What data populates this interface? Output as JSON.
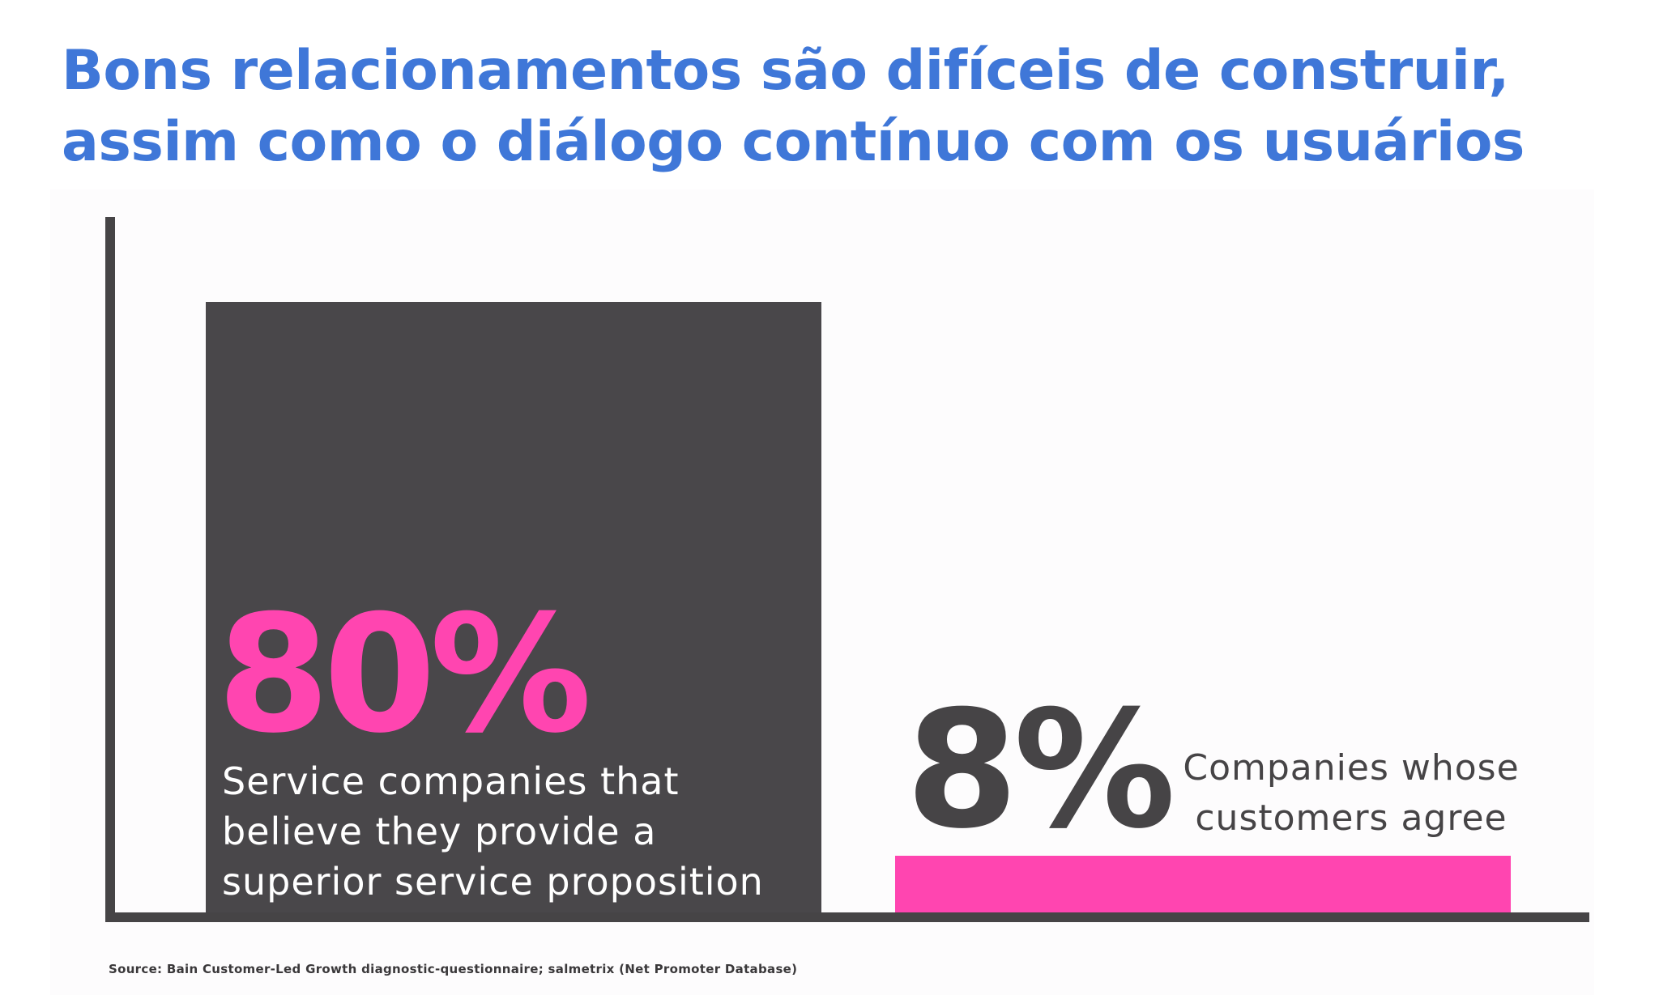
{
  "headline": {
    "line1": "Bons relacionamentos são difíceis de construir,",
    "line2": "assim como o diálogo contínuo com os usuários"
  },
  "colors": {
    "headline": "#3f77d8",
    "accent_pink": "#ff45b0",
    "bar_dark": "#49474a",
    "axis": "#464446"
  },
  "chart_data": {
    "type": "bar",
    "title": "",
    "xlabel": "",
    "ylabel": "",
    "ylim": [
      0,
      100
    ],
    "grid": false,
    "categories": [
      "Service companies that believe they provide a superior service proposition",
      "Companies whose customers agree"
    ],
    "values": [
      80,
      8
    ],
    "value_labels": [
      "80%",
      "8%"
    ],
    "label_lines": [
      [
        "Service companies that",
        "believe they provide a",
        "superior service proposition"
      ],
      [
        "Companies whose",
        "customers agree"
      ]
    ]
  },
  "source": "Source: Bain Customer-Led Growth diagnostic-questionnaire; salmetrix (Net Promoter Database)"
}
